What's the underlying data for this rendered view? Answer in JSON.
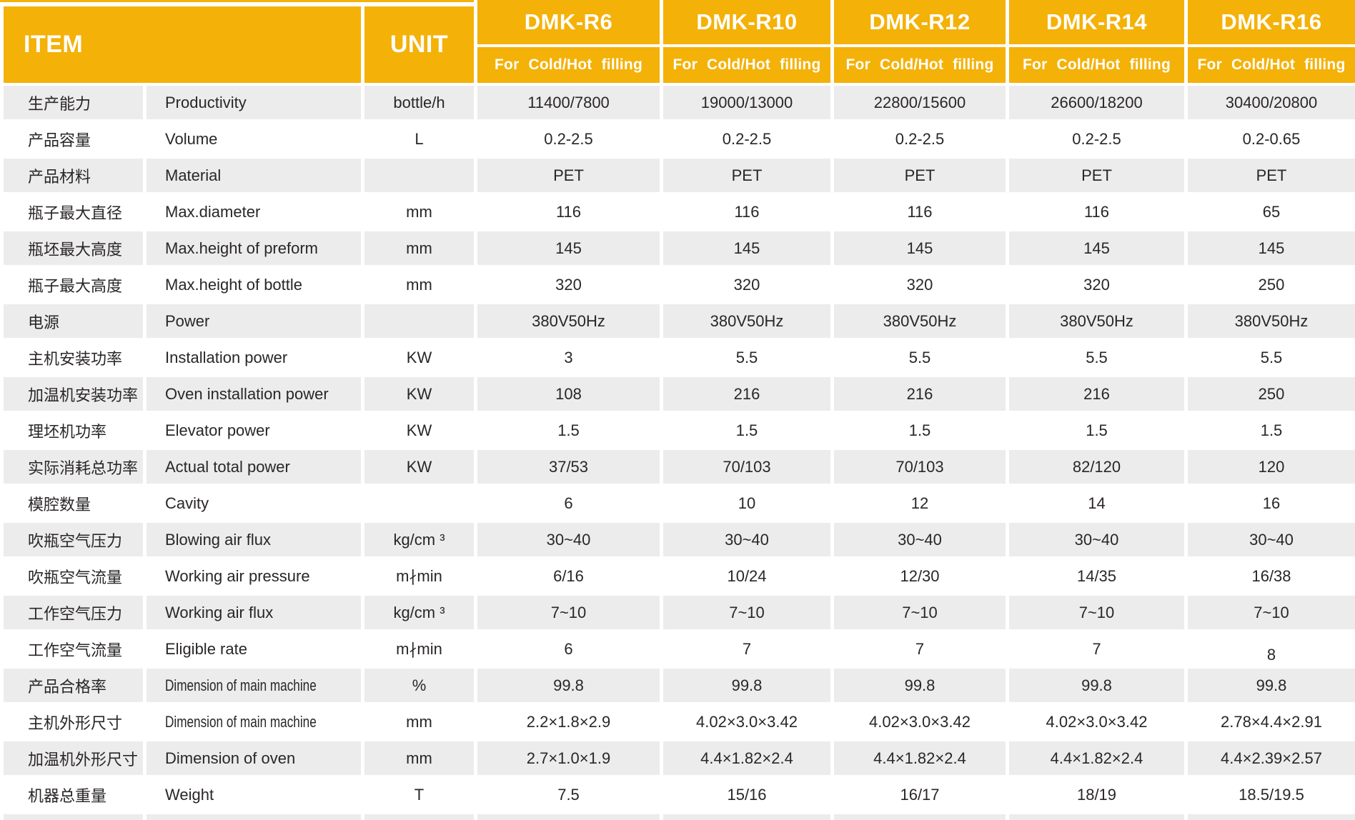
{
  "header": {
    "item_label": "ITEM",
    "unit_label": "UNIT",
    "models": [
      {
        "name": "DMK-R6",
        "subtitle": "For Cold/Hot filling"
      },
      {
        "name": "DMK-R10",
        "subtitle": "For Cold/Hot filling"
      },
      {
        "name": "DMK-R12",
        "subtitle": "For Cold/Hot filling"
      },
      {
        "name": "DMK-R14",
        "subtitle": "For Cold/Hot filling"
      },
      {
        "name": "DMK-R16",
        "subtitle": "For Cold/Hot filling"
      }
    ]
  },
  "rows": [
    {
      "cn": "生产能力",
      "en": "Productivity",
      "unit": "bottle/h",
      "values": [
        "11400/7800",
        "19000/13000",
        "22800/15600",
        "26600/18200",
        "30400/20800"
      ]
    },
    {
      "cn": "产品容量",
      "en": "Volume",
      "unit": "L",
      "values": [
        "0.2-2.5",
        "0.2-2.5",
        "0.2-2.5",
        "0.2-2.5",
        "0.2-0.65"
      ]
    },
    {
      "cn": "产品材料",
      "en": "Material",
      "unit": "",
      "values": [
        "PET",
        "PET",
        "PET",
        "PET",
        "PET"
      ]
    },
    {
      "cn": "瓶子最大直径",
      "en": "Max.diameter",
      "unit": "mm",
      "values": [
        "116",
        "116",
        "116",
        "116",
        "65"
      ]
    },
    {
      "cn": "瓶坯最大高度",
      "en": "Max.height of preform",
      "unit": "mm",
      "values": [
        "145",
        "145",
        "145",
        "145",
        "145"
      ]
    },
    {
      "cn": "瓶子最大高度",
      "en": "Max.height of bottle",
      "unit": "mm",
      "values": [
        "320",
        "320",
        "320",
        "320",
        "250"
      ]
    },
    {
      "cn": "电源",
      "en": "Power",
      "unit": "",
      "values": [
        "380V50Hz",
        "380V50Hz",
        "380V50Hz",
        "380V50Hz",
        "380V50Hz"
      ]
    },
    {
      "cn": "主机安装功率",
      "en": "Installation power",
      "unit": "KW",
      "values": [
        "3",
        "5.5",
        "5.5",
        "5.5",
        "5.5"
      ]
    },
    {
      "cn": "加温机安装功率",
      "en": "Oven installation power",
      "unit": "KW",
      "values": [
        "108",
        "216",
        "216",
        "216",
        "250"
      ]
    },
    {
      "cn": "理坯机功率",
      "en": "Elevator power",
      "unit": "KW",
      "values": [
        "1.5",
        "1.5",
        "1.5",
        "1.5",
        "1.5"
      ]
    },
    {
      "cn": "实际消耗总功率",
      "en": "Actual total power",
      "unit": "KW",
      "values": [
        "37/53",
        "70/103",
        "70/103",
        "82/120",
        "120"
      ]
    },
    {
      "cn": "模腔数量",
      "en": "Cavity",
      "unit": "",
      "values": [
        "6",
        "10",
        "12",
        "14",
        "16"
      ]
    },
    {
      "cn": "吹瓶空气压力",
      "en": "Blowing air flux",
      "unit": "kg/cm ³",
      "values": [
        "30~40",
        "30~40",
        "30~40",
        "30~40",
        "30~40"
      ]
    },
    {
      "cn": "吹瓶空气流量",
      "en": "Working air pressure",
      "unit": "m∤min",
      "values": [
        "6/16",
        "10/24",
        "12/30",
        "14/35",
        "16/38"
      ]
    },
    {
      "cn": "工作空气压力",
      "en": "Working air flux",
      "unit": "kg/cm ³",
      "values": [
        "7~10",
        "7~10",
        "7~10",
        "7~10",
        "7~10"
      ]
    },
    {
      "cn": "工作空气流量",
      "en": "Eligible rate",
      "unit": "m∤min",
      "values": [
        "6",
        "7",
        "7",
        "7",
        "8"
      ]
    },
    {
      "cn": "产品合格率",
      "en": "Dimension of main machine",
      "unit": "%",
      "values": [
        "99.8",
        "99.8",
        "99.8",
        "99.8",
        "99.8"
      ]
    },
    {
      "cn": "主机外形尺寸",
      "en": "Dimension of main machine",
      "unit": "mm",
      "values": [
        "2.2×1.8×2.9",
        "4.02×3.0×3.42",
        "4.02×3.0×3.42",
        "4.02×3.0×3.42",
        "2.78×4.4×2.91"
      ]
    },
    {
      "cn": "加温机外形尺寸",
      "en": "Dimension of oven",
      "unit": "mm",
      "values": [
        "2.7×1.0×1.9",
        "4.4×1.82×2.4",
        "4.4×1.82×2.4",
        "4.4×1.82×2.4",
        "4.4×2.39×2.57"
      ]
    },
    {
      "cn": "机器总重量",
      "en": "Weight",
      "unit": "T",
      "values": [
        "7.5",
        "15/16",
        "16/17",
        "18/19",
        "18.5/19.5"
      ]
    }
  ],
  "colors": {
    "header_orange": "#F4B108",
    "row_gray": "#ECECEC",
    "header_text": "#FFFFFF",
    "body_text": "#2A2627"
  }
}
